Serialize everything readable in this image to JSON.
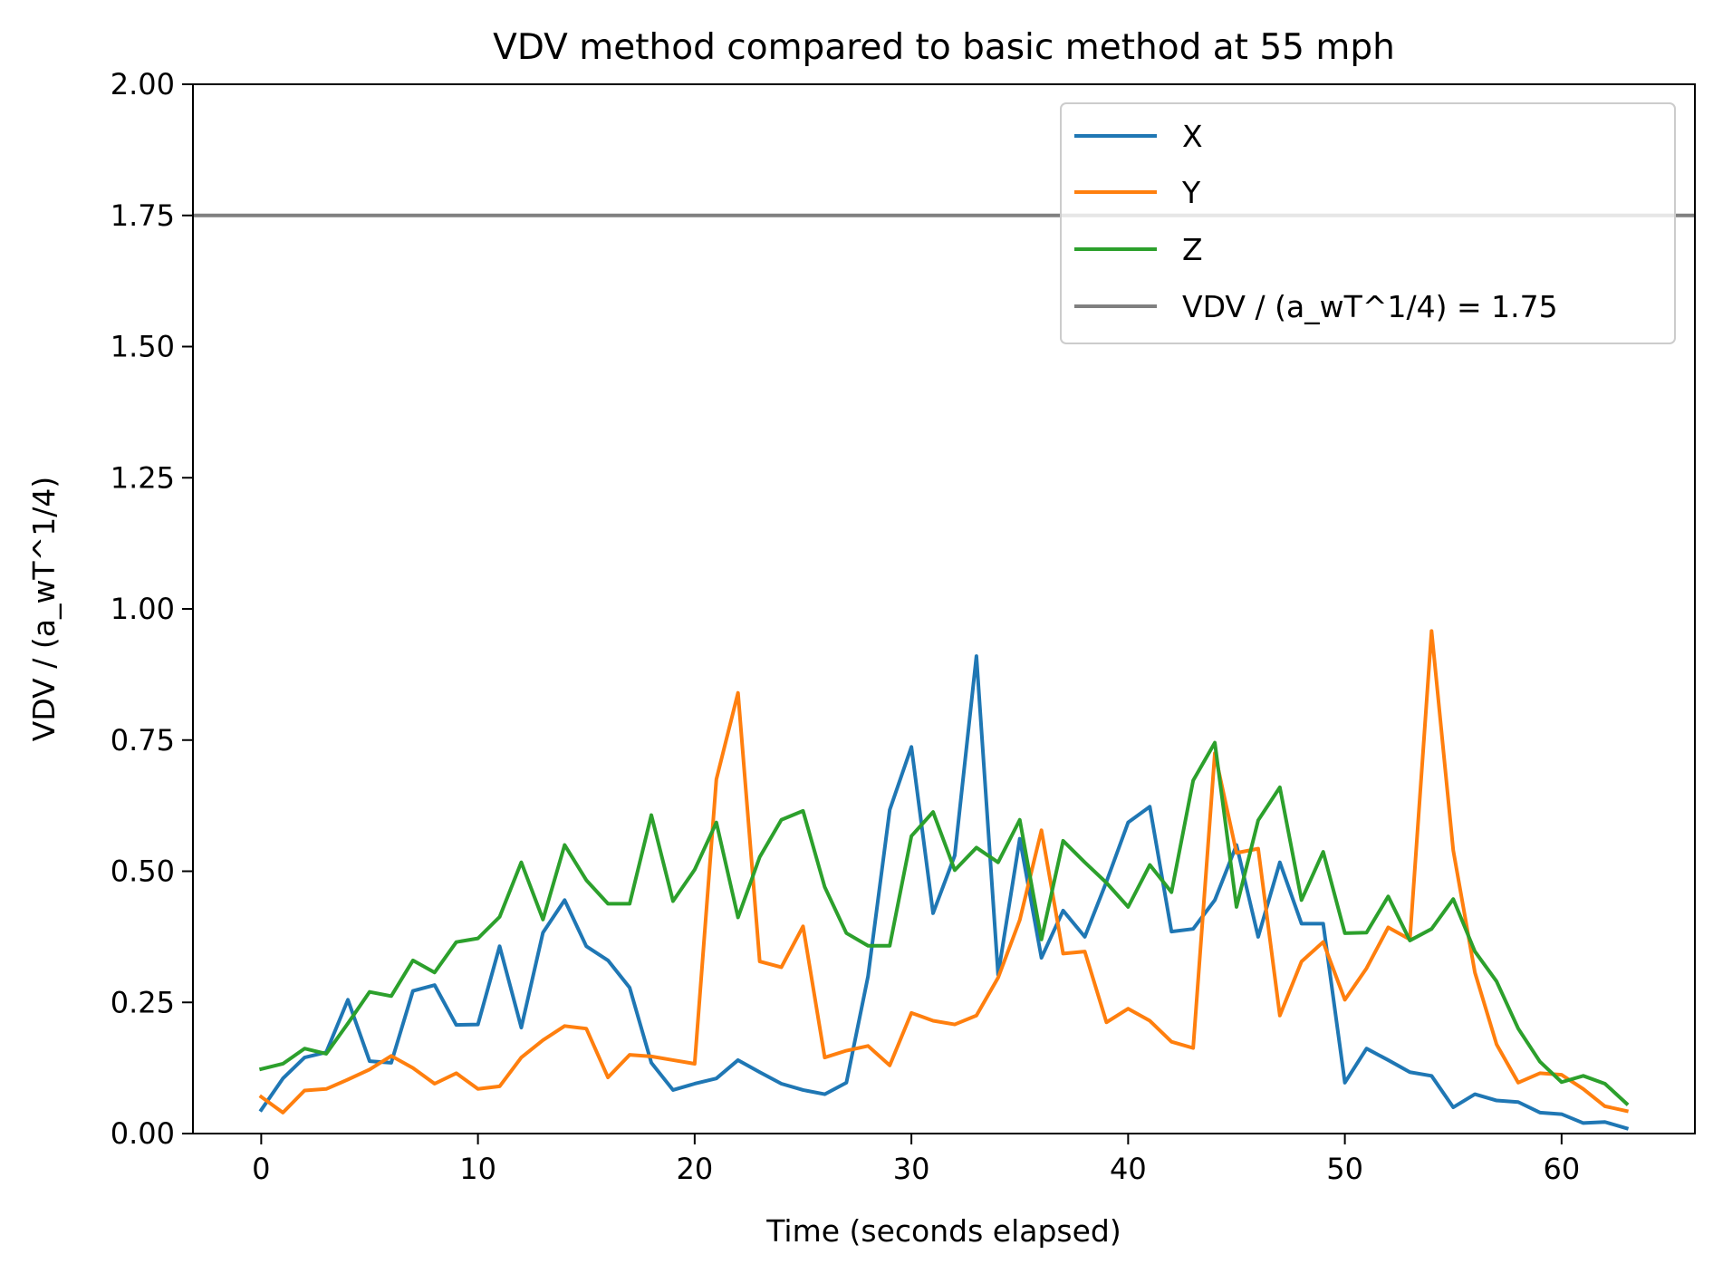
{
  "chart_data": {
    "type": "line",
    "title": "VDV method compared to basic method at 55 mph",
    "xlabel": "Time (seconds elapsed)",
    "ylabel": "VDV / (a_wT^1/4)",
    "xlim": [
      -3.15,
      66.15
    ],
    "ylim": [
      0,
      2
    ],
    "xticks": [
      0,
      10,
      20,
      30,
      40,
      50,
      60
    ],
    "xtick_labels": [
      "0",
      "10",
      "20",
      "30",
      "40",
      "50",
      "60"
    ],
    "yticks": [
      0,
      0.25,
      0.5,
      0.75,
      1.0,
      1.25,
      1.5,
      1.75,
      2.0
    ],
    "ytick_labels": [
      "0.00",
      "0.25",
      "0.50",
      "0.75",
      "1.00",
      "1.25",
      "1.50",
      "1.75",
      "2.00"
    ],
    "grid": false,
    "legend_position": "top-right",
    "x": [
      0,
      1,
      2,
      3,
      4,
      5,
      6,
      7,
      8,
      9,
      10,
      11,
      12,
      13,
      14,
      15,
      16,
      17,
      18,
      19,
      20,
      21,
      22,
      23,
      24,
      25,
      26,
      27,
      28,
      29,
      30,
      31,
      32,
      33,
      34,
      35,
      36,
      37,
      38,
      39,
      40,
      41,
      42,
      43,
      44,
      45,
      46,
      47,
      48,
      49,
      50,
      51,
      52,
      53,
      54,
      55,
      56,
      57,
      58,
      59,
      60,
      61,
      62,
      63
    ],
    "series": [
      {
        "name": "X",
        "color": "#1f77b4",
        "values": [
          0.045,
          0.105,
          0.145,
          0.155,
          0.255,
          0.138,
          0.135,
          0.272,
          0.283,
          0.207,
          0.208,
          0.357,
          0.202,
          0.383,
          0.445,
          0.357,
          0.33,
          0.278,
          0.135,
          0.083,
          0.095,
          0.105,
          0.14,
          0.117,
          0.095,
          0.083,
          0.075,
          0.097,
          0.3,
          0.617,
          0.737,
          0.42,
          0.53,
          0.91,
          0.303,
          0.562,
          0.335,
          0.425,
          0.375,
          0.48,
          0.593,
          0.623,
          0.385,
          0.39,
          0.445,
          0.55,
          0.375,
          0.517,
          0.4,
          0.4,
          0.097,
          0.162,
          0.14,
          0.117,
          0.11,
          0.05,
          0.075,
          0.063,
          0.06,
          0.04,
          0.037,
          0.02,
          0.022,
          0.01
        ]
      },
      {
        "name": "Y",
        "color": "#ff7f0e",
        "values": [
          0.07,
          0.04,
          0.082,
          0.085,
          0.103,
          0.122,
          0.148,
          0.125,
          0.095,
          0.115,
          0.085,
          0.09,
          0.145,
          0.178,
          0.205,
          0.2,
          0.107,
          0.15,
          0.147,
          0.14,
          0.133,
          0.675,
          0.84,
          0.328,
          0.317,
          0.395,
          0.145,
          0.158,
          0.167,
          0.13,
          0.23,
          0.215,
          0.208,
          0.225,
          0.297,
          0.407,
          0.578,
          0.343,
          0.347,
          0.212,
          0.238,
          0.215,
          0.175,
          0.163,
          0.725,
          0.535,
          0.543,
          0.225,
          0.328,
          0.365,
          0.255,
          0.315,
          0.393,
          0.37,
          0.958,
          0.54,
          0.307,
          0.17,
          0.097,
          0.115,
          0.112,
          0.085,
          0.052,
          0.043
        ]
      },
      {
        "name": "Z",
        "color": "#2ca02c",
        "values": [
          0.123,
          0.133,
          0.162,
          0.152,
          0.21,
          0.27,
          0.262,
          0.33,
          0.307,
          0.365,
          0.372,
          0.413,
          0.517,
          0.408,
          0.55,
          0.483,
          0.438,
          0.438,
          0.607,
          0.443,
          0.503,
          0.593,
          0.412,
          0.527,
          0.598,
          0.615,
          0.47,
          0.382,
          0.358,
          0.358,
          0.567,
          0.613,
          0.502,
          0.545,
          0.517,
          0.598,
          0.37,
          0.558,
          0.517,
          0.478,
          0.432,
          0.512,
          0.46,
          0.673,
          0.745,
          0.432,
          0.597,
          0.66,
          0.445,
          0.537,
          0.382,
          0.383,
          0.452,
          0.368,
          0.39,
          0.447,
          0.347,
          0.29,
          0.2,
          0.137,
          0.098,
          0.11,
          0.095,
          0.057
        ]
      }
    ],
    "reference_line": {
      "name": "VDV / (a_wT^1/4) = 1.75",
      "y": 1.75,
      "color": "#808080"
    }
  }
}
